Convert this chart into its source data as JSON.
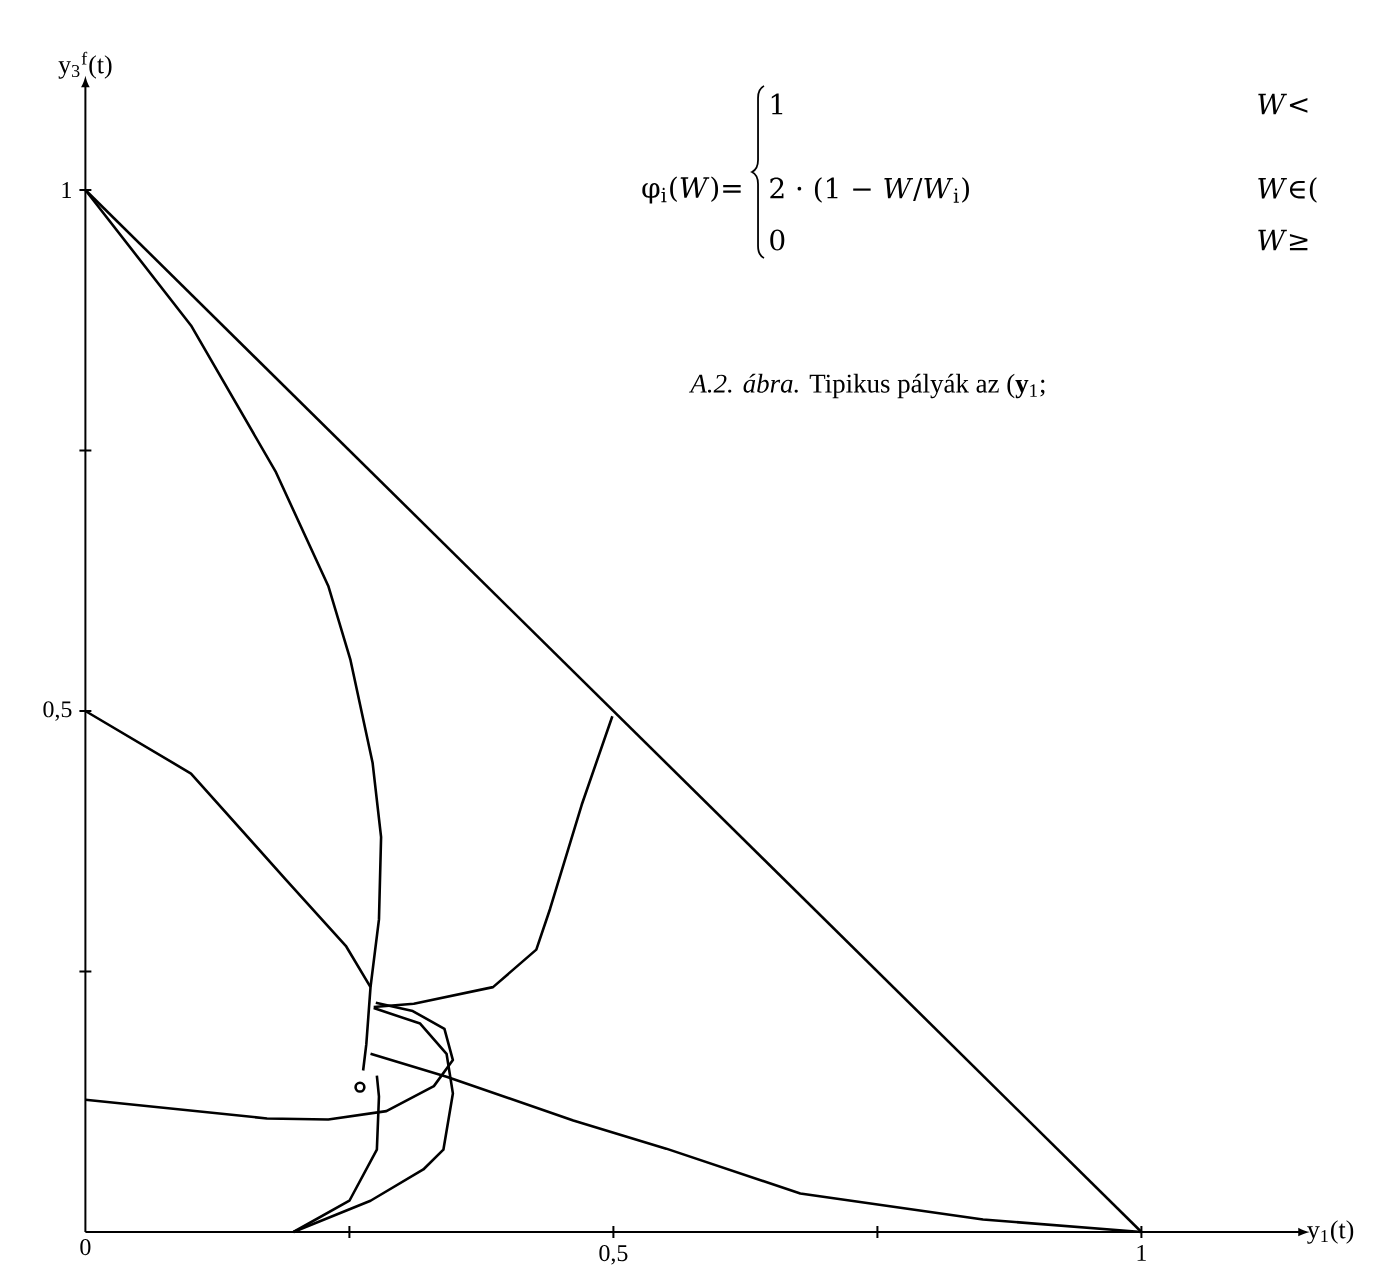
{
  "chart_data": {
    "type": "line",
    "xlabel": "y$_{1}$(t)",
    "ylabel": "y$_{3}$$^{f}$(t)",
    "xlim": [
      0,
      1.15
    ],
    "ylim": [
      0,
      1.1
    ],
    "xticks": [
      {
        "value": 0,
        "label": "0"
      },
      {
        "value": 0.25,
        "label": null
      },
      {
        "value": 0.5,
        "label": "0,5"
      },
      {
        "value": 0.75,
        "label": null
      },
      {
        "value": 1,
        "label": "1"
      }
    ],
    "yticks": [
      {
        "value": 0.25,
        "label": null
      },
      {
        "value": 0.5,
        "label": "0,5"
      },
      {
        "value": 0.75,
        "label": null
      },
      {
        "value": 1,
        "label": "1"
      }
    ],
    "series": [
      {
        "color": "#000000",
        "x": [
          0,
          1
        ],
        "values": [
          1,
          0
        ]
      },
      {
        "color": "#000000",
        "x": [
          0,
          0.1,
          0.18,
          0.23,
          0.251,
          0.272,
          0.28,
          0.278,
          0.27,
          0.266,
          0.263
        ],
        "values": [
          1,
          0.87,
          0.73,
          0.62,
          0.549,
          0.45,
          0.379,
          0.3,
          0.235,
          0.18,
          0.155
        ]
      },
      {
        "color": "#000000",
        "x": [
          0,
          0.1,
          0.19,
          0.247,
          0.27
        ],
        "values": [
          0.5,
          0.44,
          0.338,
          0.274,
          0.235
        ]
      },
      {
        "color": "#000000",
        "x": [
          0.499,
          0.47,
          0.44,
          0.427,
          0.386,
          0.311,
          0.273
        ],
        "values": [
          0.495,
          0.41,
          0.31,
          0.271,
          0.235,
          0.219,
          0.216
        ]
      },
      {
        "color": "#000000",
        "x": [
          1,
          0.85,
          0.677,
          0.55,
          0.462,
          0.342,
          0.27
        ],
        "values": [
          0,
          0.012,
          0.037,
          0.08,
          0.107,
          0.149,
          0.171
        ]
      },
      {
        "color": "#000000",
        "x": [
          0,
          0.172,
          0.23,
          0.285,
          0.33,
          0.348,
          0.34,
          0.31,
          0.275
        ],
        "values": [
          0.127,
          0.109,
          0.108,
          0.116,
          0.14,
          0.165,
          0.195,
          0.212,
          0.22
        ]
      },
      {
        "color": "#000000",
        "x": [
          0.197,
          0.27,
          0.32,
          0.339,
          0.348,
          0.342,
          0.317,
          0.273
        ],
        "values": [
          0,
          0.03,
          0.06,
          0.079,
          0.133,
          0.171,
          0.2,
          0.215
        ]
      },
      {
        "color": "#000000",
        "x": [
          0.197,
          0.25,
          0.276,
          0.278,
          0.276
        ],
        "values": [
          0,
          0.03,
          0.079,
          0.13,
          0.15
        ]
      },
      {
        "type": "scatter",
        "marker": "circle",
        "color": "#000000",
        "x": [
          0.26
        ],
        "values": [
          0.139
        ]
      }
    ],
    "annotations": [
      "φ$_{i}$(*W*)=",
      "1",
      "2 · (1 − *W*/*W*$_{i}$)",
      "0",
      "*W*<",
      "*W*∈(",
      "*W*≥",
      "*A.2. ábra.* Tipikus pályák az (**y**$_{1}$;"
    ]
  }
}
